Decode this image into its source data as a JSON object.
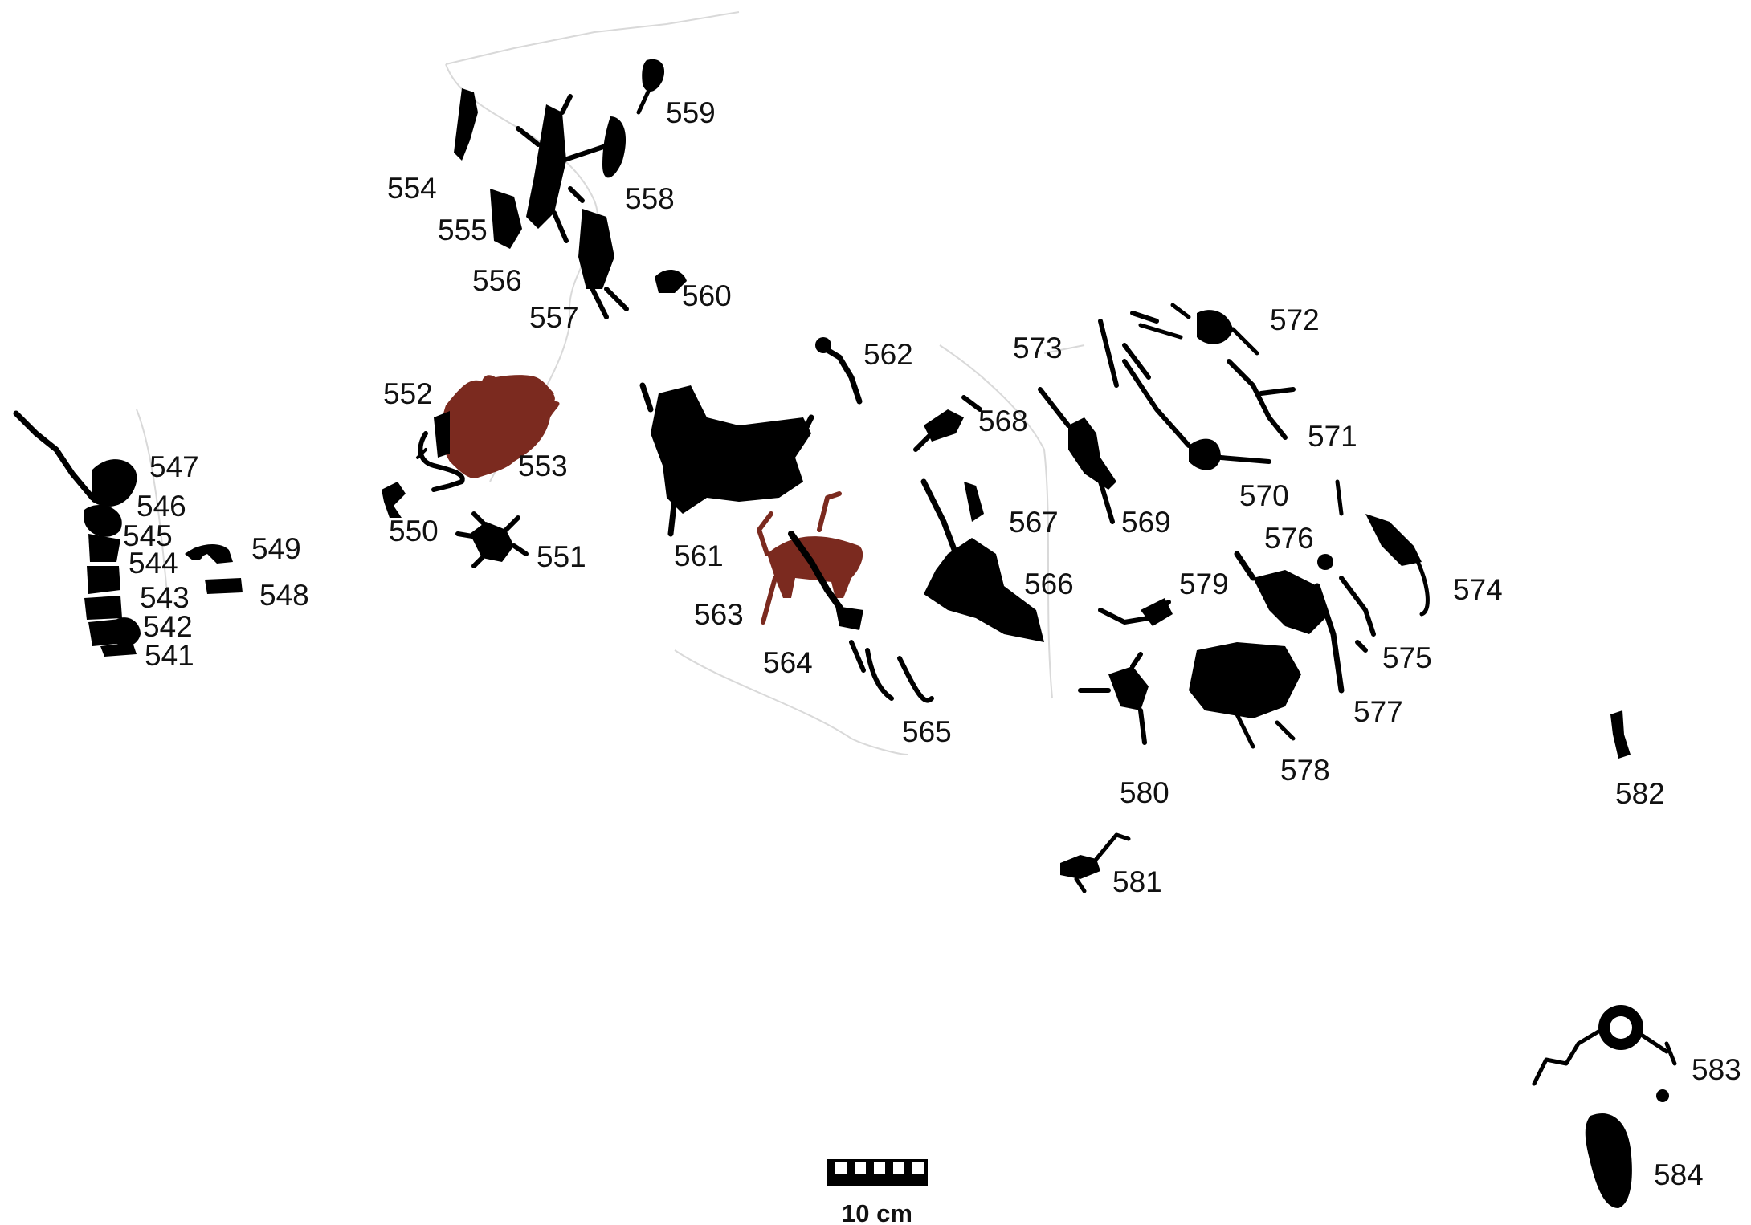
{
  "colors": {
    "figure": "#000000",
    "ochre": "#7b2a1f",
    "rock_crack": "#d9d9d9"
  },
  "figures": {
    "f541": "541",
    "f542": "542",
    "f543": "543",
    "f544": "544",
    "f545": "545",
    "f546": "546",
    "f547": "547",
    "f548": "548",
    "f549": "549",
    "f550": "550",
    "f551": "551",
    "f552": "552",
    "f553": "553",
    "f554": "554",
    "f555": "555",
    "f556": "556",
    "f557": "557",
    "f558": "558",
    "f559": "559",
    "f560": "560",
    "f561": "561",
    "f562": "562",
    "f563": "563",
    "f564": "564",
    "f565": "565",
    "f566": "566",
    "f567": "567",
    "f568": "568",
    "f569": "569",
    "f570": "570",
    "f571": "571",
    "f572": "572",
    "f573": "573",
    "f574": "574",
    "f575": "575",
    "f576": "576",
    "f577": "577",
    "f578": "578",
    "f579": "579",
    "f580": "580",
    "f581": "581",
    "f582": "582",
    "f583": "583",
    "f584": "584"
  },
  "scale_bar": {
    "label": "10 cm",
    "segments": 5
  }
}
